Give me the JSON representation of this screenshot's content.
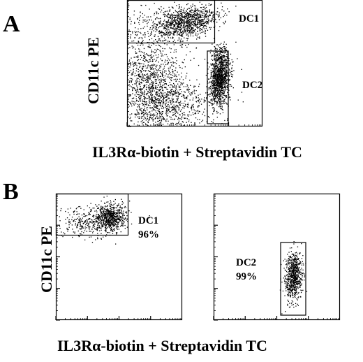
{
  "panel_a": {
    "letter": "A",
    "y_label": "CD11c PE",
    "x_label": "IL3Rα-biotin + Streptavidin TC",
    "gates": [
      {
        "name": "DC1",
        "label": "DC1"
      },
      {
        "name": "DC2",
        "label": "DC2"
      }
    ]
  },
  "panel_b": {
    "letter": "B",
    "y_label": "CD11c PE",
    "x_label": "IL3Rα-biotin + Streptavidin TC",
    "plots": [
      {
        "label": "DC1",
        "percent": "96%"
      },
      {
        "label": "DC2",
        "percent": "99%"
      }
    ]
  },
  "colors": {
    "dots": "#000000",
    "axes": "#000000"
  }
}
